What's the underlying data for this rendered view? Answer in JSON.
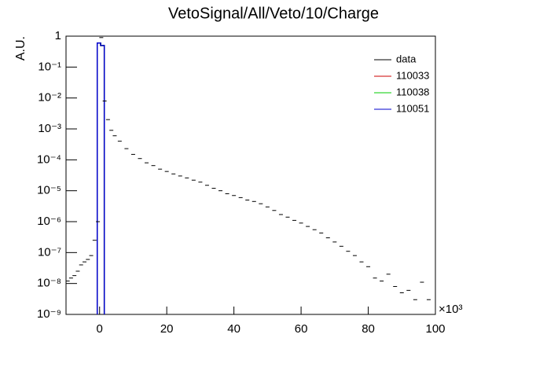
{
  "chart_data": {
    "type": "step",
    "title": "VetoSignal/All/Veto/10/Charge",
    "y_label": "A.U.",
    "x_multiplier": "×10³",
    "xlim": [
      -10,
      100
    ],
    "xticks": [
      0,
      20,
      40,
      60,
      80,
      100
    ],
    "ylim": [
      1e-09,
      1
    ],
    "log_y": true,
    "yticks": [
      1,
      {
        "value": 0.1,
        "label": "10⁻¹"
      },
      {
        "value": 0.01,
        "label": "10⁻²"
      },
      {
        "value": 0.001,
        "label": "10⁻³"
      },
      {
        "value": 0.0001,
        "label": "10⁻⁴"
      },
      {
        "value": 1e-05,
        "label": "10⁻⁵"
      },
      {
        "value": 1e-06,
        "label": "10⁻⁶"
      },
      {
        "value": 1e-07,
        "label": "10⁻⁷"
      },
      {
        "value": 1e-08,
        "label": "10⁻⁸"
      },
      {
        "value": 1e-09,
        "label": "10⁻⁹"
      }
    ],
    "legend": "top-right",
    "data": {
      "name": "data",
      "color": "#000000",
      "x": [
        -9.5,
        -8.5,
        -7.5,
        -6.5,
        -5.5,
        -4.5,
        -3.5,
        -2.5,
        -1.5,
        -0.5,
        0.5,
        1.5,
        2.5,
        3.5,
        4.5,
        6,
        8,
        10,
        12,
        14,
        16,
        18,
        20,
        22,
        24,
        26,
        28,
        30,
        32,
        34,
        36,
        38,
        40,
        42,
        44,
        46,
        48,
        50,
        52,
        54,
        56,
        58,
        60,
        62,
        64,
        66,
        68,
        70,
        72,
        74,
        76,
        78,
        80,
        82,
        84,
        86,
        88,
        90,
        92,
        94,
        96,
        98
      ],
      "values": [
        1.2e-08,
        1.5e-08,
        1.8e-08,
        2.5e-08,
        4e-08,
        5e-08,
        6e-08,
        8e-08,
        2.5e-07,
        1e-06,
        0.9,
        0.008,
        0.002,
        0.0009,
        0.0006,
        0.0004,
        0.00023,
        0.00015,
        0.00011,
        8e-05,
        6.5e-05,
        5e-05,
        4.2e-05,
        3.5e-05,
        3e-05,
        2.6e-05,
        2.2e-05,
        1.9e-05,
        1.5e-05,
        1.2e-05,
        1e-05,
        8e-06,
        7e-06,
        6e-06,
        5e-06,
        4.5e-06,
        3.8e-06,
        3e-06,
        2.3e-06,
        1.7e-06,
        1.4e-06,
        1.1e-06,
        9e-07,
        7e-07,
        5.5e-07,
        4.3e-07,
        3e-07,
        2.2e-07,
        1.6e-07,
        1.1e-07,
        8e-08,
        5e-08,
        3.5e-08,
        1.5e-08,
        1.2e-08,
        2e-08,
        8e-09,
        5e-09,
        6e-09,
        3e-09,
        1.1e-08,
        3e-09
      ]
    },
    "series": [
      {
        "name": "110033",
        "color": "#cc0000",
        "bins": [
          -0.7,
          0.3,
          1.4
        ],
        "values": [
          0.6,
          0.5
        ]
      },
      {
        "name": "110038",
        "color": "#00cc00",
        "bins": [
          -0.7,
          0.3,
          1.4
        ],
        "values": [
          0.6,
          0.5
        ]
      },
      {
        "name": "110051",
        "color": "#0000cc",
        "bins": [
          -0.7,
          0.3,
          1.4
        ],
        "values": [
          0.6,
          0.5
        ]
      }
    ]
  }
}
